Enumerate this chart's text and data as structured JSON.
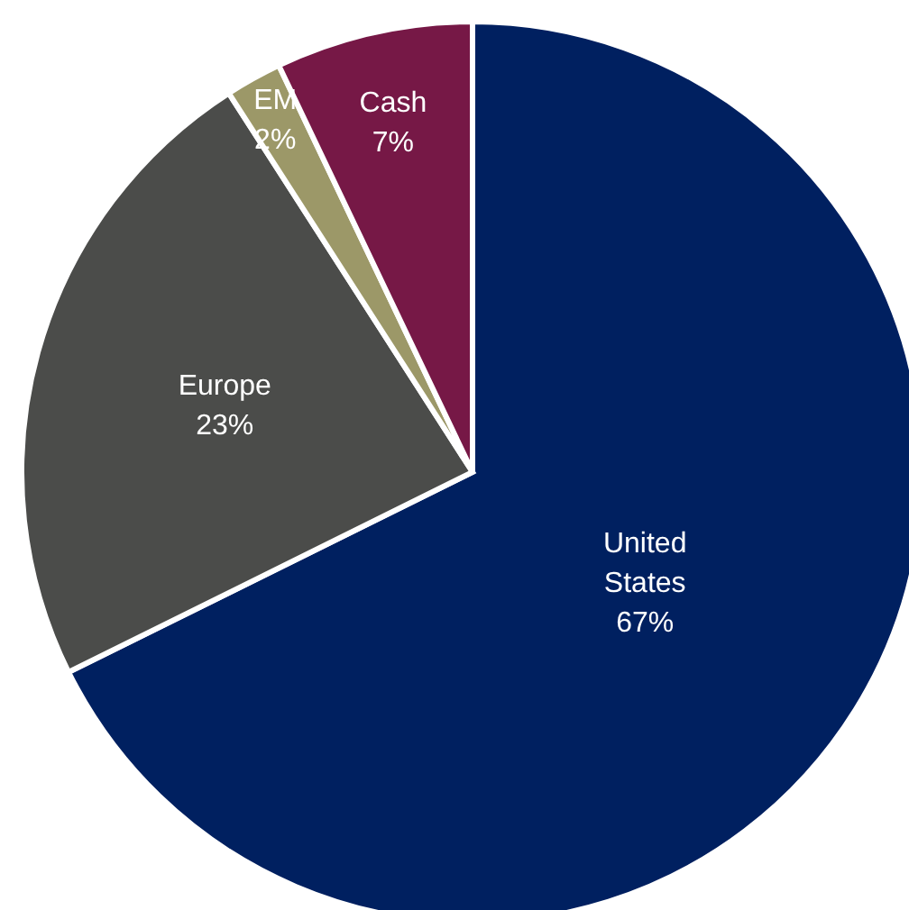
{
  "chart_data": {
    "type": "pie",
    "categories": [
      "United States",
      "Europe",
      "EM",
      "Cash"
    ],
    "values": [
      67,
      23,
      2,
      7
    ],
    "value_labels": [
      "67%",
      "23%",
      "2%",
      "7%"
    ],
    "colors": [
      "#002060",
      "#4b4c4a",
      "#9c9868",
      "#761846"
    ]
  }
}
